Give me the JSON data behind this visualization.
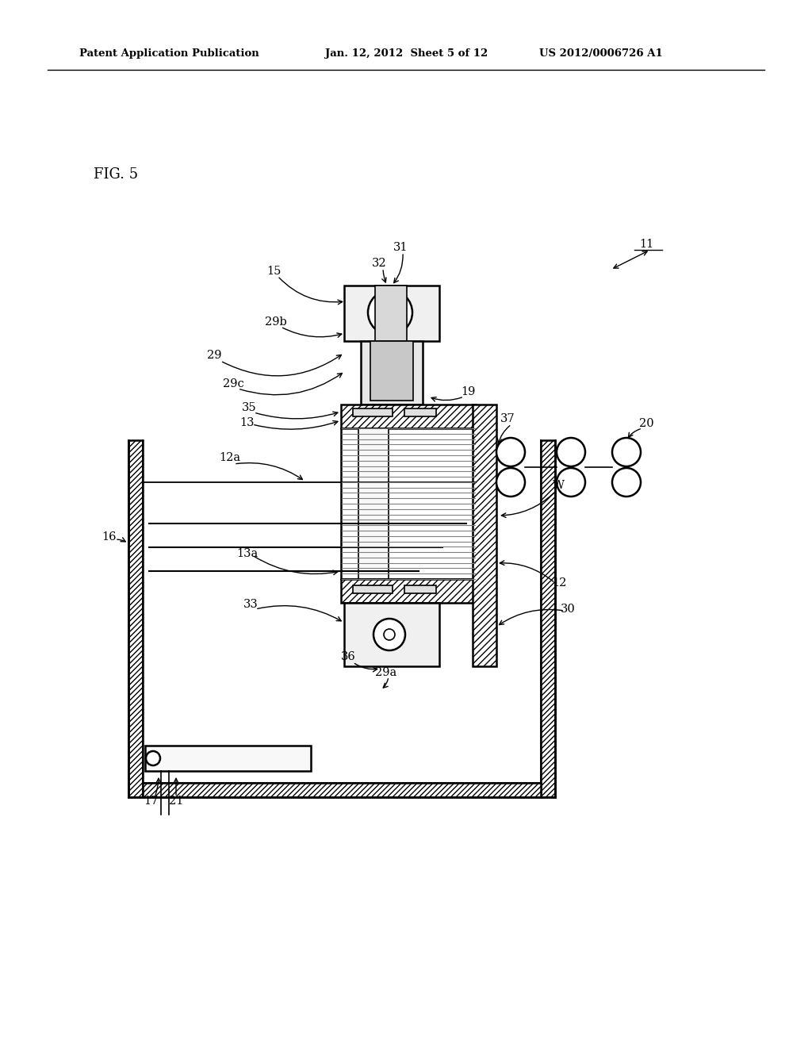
{
  "bg_color": "#ffffff",
  "line_color": "#000000",
  "header_left": "Patent Application Publication",
  "header_mid": "Jan. 12, 2012  Sheet 5 of 12",
  "header_right": "US 2012/0006726 A1",
  "fig_label": "FIG. 5"
}
